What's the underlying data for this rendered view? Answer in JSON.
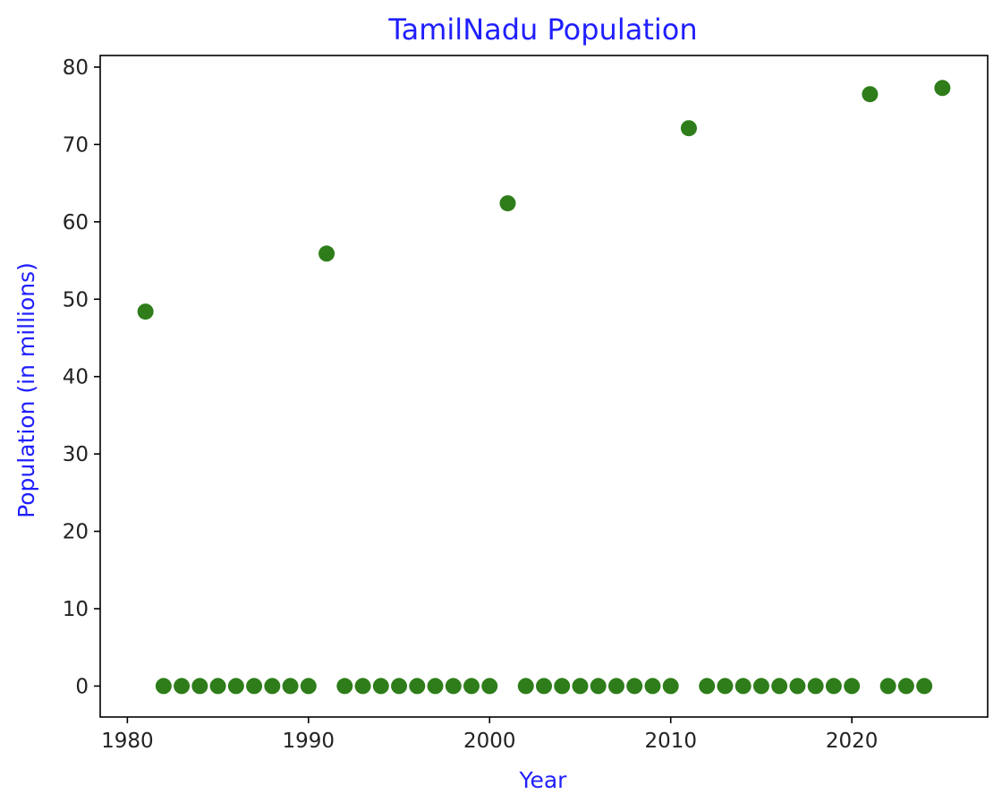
{
  "chart_data": {
    "type": "scatter",
    "title": "TamilNadu Population",
    "xlabel": "Year",
    "ylabel": "Population (in millions)",
    "xlim": [
      1978.5,
      2027.5
    ],
    "ylim": [
      -4,
      81.5
    ],
    "xticks": [
      1980,
      1990,
      2000,
      2010,
      2020
    ],
    "yticks": [
      0,
      10,
      20,
      30,
      40,
      50,
      60,
      70,
      80
    ],
    "grid": false,
    "colors": {
      "marker": "#2e7d1a",
      "title": "#1f1fff",
      "axis_label": "#1f1fff"
    },
    "series": [
      {
        "x": [
          1981,
          1982,
          1983,
          1984,
          1985,
          1986,
          1987,
          1988,
          1989,
          1990,
          1991,
          1992,
          1993,
          1994,
          1995,
          1996,
          1997,
          1998,
          1999,
          2000,
          2001,
          2002,
          2003,
          2004,
          2005,
          2006,
          2007,
          2008,
          2009,
          2010,
          2011,
          2012,
          2013,
          2014,
          2015,
          2016,
          2017,
          2018,
          2019,
          2020,
          2021,
          2022,
          2023,
          2024,
          2025
        ],
        "y": [
          48.4,
          0,
          0,
          0,
          0,
          0,
          0,
          0,
          0,
          0,
          55.9,
          0,
          0,
          0,
          0,
          0,
          0,
          0,
          0,
          0,
          62.4,
          0,
          0,
          0,
          0,
          0,
          0,
          0,
          0,
          0,
          72.1,
          0,
          0,
          0,
          0,
          0,
          0,
          0,
          0,
          0,
          76.5,
          0,
          0,
          0,
          77.3
        ]
      }
    ]
  }
}
